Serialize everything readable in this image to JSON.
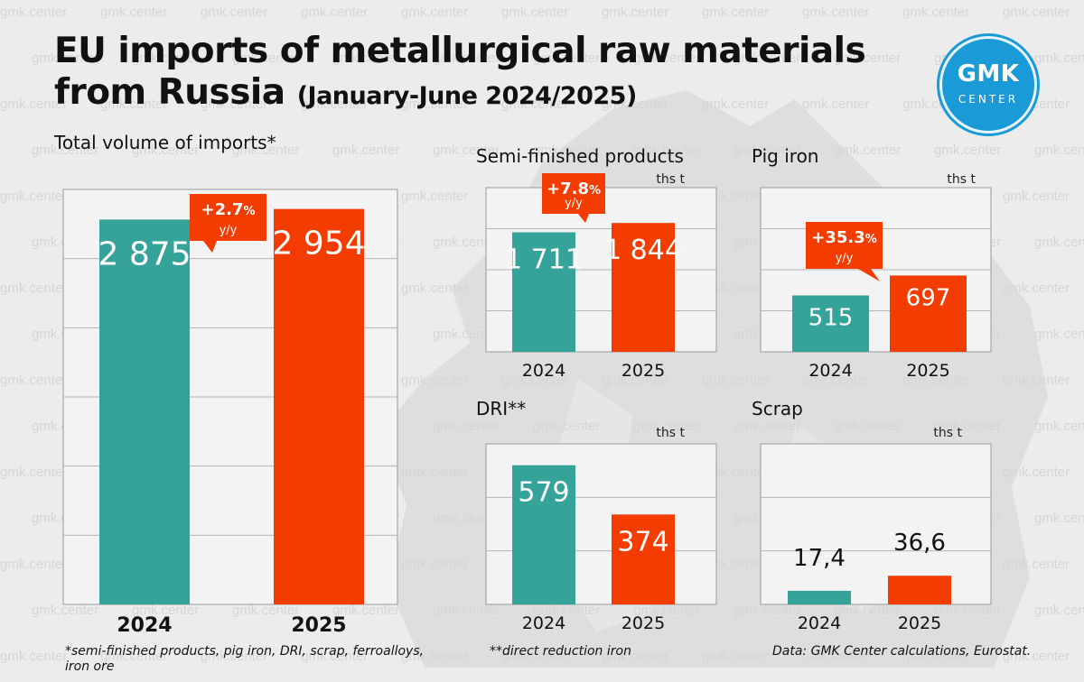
{
  "title": {
    "line1": "EU imports of metallurgical raw materials",
    "line2": "from Russia",
    "line2_sub": "(January-June 2024/2025)"
  },
  "logo": {
    "line1": "GMK",
    "line2": "CENTER",
    "color": "#1a9ad6"
  },
  "watermark": "gmk.center",
  "colors": {
    "series_2024": "#35a39a",
    "series_2025": "#f23c00",
    "badge": "#f23c00"
  },
  "sections": {
    "total": "Total volume of imports*",
    "semi": "Semi-finished products",
    "pig": "Pig iron",
    "dri": "DRI**",
    "scrap": "Scrap"
  },
  "chart_data": [
    {
      "id": "total",
      "type": "bar",
      "title": "Total volume of imports*",
      "unit": "",
      "categories": [
        "2024",
        "2025"
      ],
      "values": [
        2875,
        2954
      ],
      "value_labels": [
        "2 875",
        "2 954"
      ],
      "change": {
        "value": "+2.7",
        "percent": "%",
        "suffix": "y/y"
      },
      "ylim": [
        0,
        3100
      ],
      "grid": true
    },
    {
      "id": "semi",
      "type": "bar",
      "title": "Semi-finished products",
      "unit": "ths t",
      "categories": [
        "2024",
        "2025"
      ],
      "values": [
        1711,
        1844
      ],
      "value_labels": [
        "1 711",
        "1 844"
      ],
      "change": {
        "value": "+7.8",
        "percent": "%",
        "suffix": "y/y"
      },
      "ylim": [
        0,
        2350
      ],
      "grid": true
    },
    {
      "id": "pig",
      "type": "bar",
      "title": "Pig iron",
      "unit": "ths t",
      "categories": [
        "2024",
        "2025"
      ],
      "values": [
        515,
        697
      ],
      "value_labels": [
        "515",
        "697"
      ],
      "change": {
        "value": "+35.3",
        "percent": "%",
        "suffix": "y/y"
      },
      "ylim": [
        0,
        1500
      ],
      "grid": true
    },
    {
      "id": "dri",
      "type": "bar",
      "title": "DRI**",
      "unit": "ths t",
      "categories": [
        "2024",
        "2025"
      ],
      "values": [
        579,
        374
      ],
      "value_labels": [
        "579",
        "374"
      ],
      "ylim": [
        0,
        668
      ],
      "grid": true
    },
    {
      "id": "scrap",
      "type": "bar",
      "title": "Scrap",
      "unit": "ths t",
      "categories": [
        "2024",
        "2025"
      ],
      "values": [
        17.4,
        36.6
      ],
      "value_labels": [
        "17,4",
        "36,6"
      ],
      "ylim": [
        0,
        205
      ],
      "grid": true
    }
  ],
  "footnotes": {
    "left": "*semi-finished products, pig iron, DRI, scrap, ferroalloys, iron ore",
    "middle": "**direct reduction iron",
    "right": "Data: GMK Center calculations, Eurostat."
  }
}
